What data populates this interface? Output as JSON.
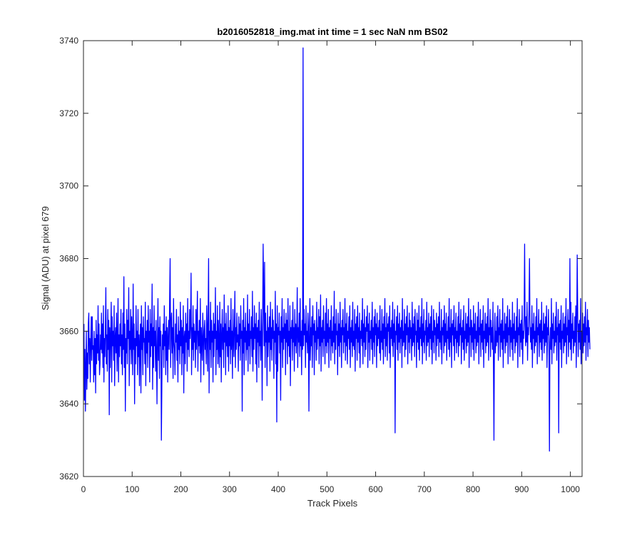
{
  "chart_data": {
    "type": "line",
    "title": "b2016052818_img.mat int time = 1 sec  NaN nm BS02",
    "xlabel": "Track Pixels",
    "ylabel": "Signal (ADU) at pixel 679",
    "xlim": [
      0,
      1024
    ],
    "ylim": [
      3620,
      3740
    ],
    "xticks": [
      0,
      100,
      200,
      300,
      400,
      500,
      600,
      700,
      800,
      900,
      1000
    ],
    "yticks": [
      3620,
      3640,
      3660,
      3680,
      3700,
      3720,
      3740
    ],
    "grid": false,
    "legend": "none",
    "series_color": "#0000ff",
    "series": [
      {
        "x_start": 1,
        "x_step": 1,
        "values": [
          3662,
          3641,
          3655,
          3638,
          3650,
          3660,
          3644,
          3654,
          3647,
          3662,
          3665,
          3651,
          3658,
          3646,
          3657,
          3664,
          3652,
          3664,
          3655,
          3656,
          3646,
          3660,
          3648,
          3658,
          3643,
          3663,
          3651,
          3659,
          3654,
          3667,
          3652,
          3662,
          3648,
          3651,
          3659,
          3655,
          3665,
          3654,
          3662,
          3650,
          3667,
          3646,
          3658,
          3653,
          3661,
          3672,
          3651,
          3659,
          3649,
          3666,
          3655,
          3663,
          3637,
          3661,
          3650,
          3659,
          3668,
          3646,
          3664,
          3656,
          3660,
          3652,
          3667,
          3645,
          3658,
          3661,
          3654,
          3665,
          3649,
          3657,
          3669,
          3646,
          3659,
          3653,
          3662,
          3656,
          3666,
          3651,
          3659,
          3648,
          3665,
          3655,
          3675,
          3650,
          3662,
          3638,
          3658,
          3654,
          3666,
          3651,
          3663,
          3658,
          3672,
          3645,
          3660,
          3655,
          3666,
          3651,
          3664,
          3658,
          3648,
          3673,
          3655,
          3662,
          3640,
          3658,
          3651,
          3667,
          3656,
          3660,
          3648,
          3666,
          3653,
          3659,
          3645,
          3657,
          3662,
          3643,
          3667,
          3655,
          3661,
          3648,
          3664,
          3657,
          3658,
          3651,
          3668,
          3645,
          3660,
          3654,
          3663,
          3650,
          3667,
          3657,
          3660,
          3646,
          3666,
          3653,
          3662,
          3656,
          3673,
          3644,
          3661,
          3650,
          3667,
          3656,
          3660,
          3649,
          3663,
          3655,
          3640,
          3658,
          3669,
          3652,
          3661,
          3647,
          3664,
          3656,
          3660,
          3630,
          3645,
          3659,
          3655,
          3662,
          3650,
          3667,
          3656,
          3660,
          3648,
          3664,
          3652,
          3661,
          3646,
          3658,
          3663,
          3655,
          3669,
          3653,
          3650,
          3662,
          3665,
          3654,
          3661,
          3647,
          3669,
          3657,
          3655,
          3648,
          3662,
          3657,
          3666,
          3652,
          3659,
          3646,
          3664,
          3655,
          3660,
          3651,
          3668,
          3656,
          3663,
          3648,
          3661,
          3654,
          3667,
          3643,
          3658,
          3660,
          3651,
          3665,
          3657,
          3662,
          3649,
          3669,
          3655,
          3660,
          3653,
          3666,
          3658,
          3663,
          3676,
          3648,
          3661,
          3655,
          3667,
          3652,
          3662,
          3657,
          3660,
          3650,
          3666,
          3655,
          3662,
          3671,
          3649,
          3660,
          3656,
          3663,
          3654,
          3669,
          3646,
          3661,
          3657,
          3652,
          3665,
          3659,
          3648,
          3660,
          3663,
          3655,
          3658,
          3651,
          3667,
          3661,
          3649,
          3664,
          3680,
          3643,
          3660,
          3655,
          3668,
          3650,
          3663,
          3657,
          3660,
          3646,
          3665,
          3653,
          3662,
          3658,
          3672,
          3648,
          3660,
          3655,
          3667,
          3651,
          3663,
          3657,
          3650,
          3668,
          3653,
          3662,
          3646,
          3659,
          3666,
          3655,
          3661,
          3650,
          3670,
          3657,
          3662,
          3648,
          3665,
          3656,
          3660,
          3653,
          3667,
          3649,
          3661,
          3656,
          3663,
          3651,
          3669,
          3655,
          3660,
          3647,
          3666,
          3658,
          3653,
          3662,
          3671,
          3650,
          3661,
          3655,
          3665,
          3657,
          3659,
          3649,
          3664,
          3656,
          3662,
          3652,
          3667,
          3658,
          3660,
          3638,
          3663,
          3654,
          3669,
          3648,
          3661,
          3657,
          3665,
          3652,
          3660,
          3655,
          3670,
          3649,
          3662,
          3656,
          3666,
          3651,
          3660,
          3658,
          3664,
          3653,
          3671,
          3649,
          3661,
          3655,
          3667,
          3658,
          3662,
          3651,
          3665,
          3646,
          3661,
          3657,
          3663,
          3650,
          3668,
          3656,
          3660,
          3652,
          3666,
          3659,
          3641,
          3663,
          3648,
          3669,
          3656,
          3662,
          3650,
          3665,
          3657,
          3660,
          3645,
          3667,
          3653,
          3661,
          3657,
          3664,
          3649,
          3668,
          3655,
          3661,
          3652,
          3666,
          3658,
          3663,
          3647,
          3660,
          3657,
          3671,
          3651,
          3662,
          3656,
          3667,
          3649,
          3661,
          3659,
          3665,
          3654,
          3660,
          3641,
          3664,
          3657,
          3669,
          3650,
          3661,
          3655,
          3666,
          3658,
          3662,
          3648,
          3665,
          3657,
          3663,
          3651,
          3669,
          3656,
          3660,
          3653,
          3667,
          3645,
          3661,
          3658,
          3663,
          3652,
          3668,
          3657,
          3661,
          3649,
          3666,
          3656,
          3662,
          3654,
          3660,
          3672,
          3650,
          3661,
          3657,
          3665,
          3653,
          3669,
          3656,
          3660,
          3648,
          3663,
          3661,
          3657,
          3652,
          3666,
          3659,
          3662,
          3650,
          3667,
          3657,
          3660,
          3654,
          3665,
          3661,
          3638,
          3658,
          3669,
          3652,
          3661,
          3656,
          3664,
          3650,
          3667,
          3659,
          3662,
          3648,
          3663,
          3657,
          3660,
          3652,
          3668,
          3655,
          3661,
          3658,
          3666,
          3651,
          3664,
          3656,
          3670,
          3649,
          3661,
          3657,
          3663,
          3653,
          3667,
          3658,
          3660,
          3651,
          3665,
          3656,
          3669,
          3654,
          3662,
          3657,
          3666,
          3650,
          3661,
          3658,
          3663,
          3652,
          3667,
          3656,
          3660,
          3654,
          3664,
          3657,
          3671,
          3651,
          3662,
          3655,
          3666,
          3659,
          3660,
          3648,
          3665,
          3656,
          3662,
          3653,
          3668,
          3657,
          3661,
          3650,
          3663,
          3659,
          3666,
          3654,
          3661,
          3657,
          3669,
          3652,
          3662,
          3656,
          3665,
          3651,
          3660,
          3658,
          3664,
          3655,
          3667,
          3650,
          3661,
          3657,
          3663,
          3653,
          3668,
          3656,
          3660,
          3655,
          3666,
          3649,
          3662,
          3658,
          3664,
          3652,
          3667,
          3657,
          3661,
          3654,
          3665,
          3650,
          3660,
          3658,
          3663,
          3656,
          3669,
          3651,
          3662,
          3657,
          3666,
          3653,
          3661,
          3655,
          3664,
          3660,
          3667,
          3650,
          3662,
          3657,
          3665,
          3652,
          3660,
          3658,
          3663,
          3655,
          3668,
          3651,
          3661,
          3657,
          3664,
          3653,
          3666,
          3659,
          3662,
          3650,
          3665,
          3656,
          3661,
          3658,
          3663,
          3654,
          3667,
          3652,
          3660,
          3657,
          3666,
          3655,
          3662,
          3651,
          3664,
          3658,
          3669,
          3653,
          3661,
          3656,
          3665,
          3652,
          3662,
          3660,
          3664,
          3654,
          3667,
          3650,
          3661,
          3658,
          3663,
          3656,
          3668,
          3653,
          3662,
          3657,
          3666,
          3651,
          3660,
          3659,
          3664,
          3655,
          3667,
          3652,
          3662,
          3657,
          3665,
          3654,
          3661,
          3658,
          3663,
          3650,
          3669,
          3656,
          3660,
          3657,
          3666,
          3653,
          3662,
          3655,
          3664,
          3659,
          3667,
          3651,
          3661,
          3657,
          3665,
          3654,
          3663,
          3658,
          3661,
          3652,
          3668,
          3656,
          3662,
          3657,
          3664,
          3653,
          3666,
          3659,
          3660,
          3650,
          3665,
          3657,
          3663,
          3655,
          3667,
          3652,
          3661,
          3658,
          3664,
          3656,
          3669,
          3651,
          3662,
          3657,
          3666,
          3654,
          3660,
          3659,
          3663,
          3652,
          3668,
          3656,
          3661,
          3657,
          3665,
          3653,
          3662,
          3658,
          3664,
          3655,
          3667,
          3651,
          3660,
          3657,
          3666,
          3654,
          3663,
          3659,
          3661,
          3652,
          3665,
          3656,
          3662,
          3658,
          3664,
          3653,
          3668,
          3657,
          3660,
          3655,
          3666,
          3651,
          3661,
          3659,
          3663,
          3654,
          3667,
          3656,
          3662,
          3657,
          3665,
          3652,
          3660,
          3658,
          3664,
          3655,
          3669,
          3653,
          3661,
          3657,
          3666,
          3650,
          3662,
          3659,
          3663,
          3656,
          3667,
          3652,
          3661,
          3658,
          3665,
          3654,
          3660,
          3657,
          3664,
          3653,
          3668,
          3656,
          3662,
          3659,
          3666,
          3651,
          3661,
          3657,
          3663,
          3655,
          3667,
          3652,
          3660,
          3658,
          3665,
          3654,
          3662,
          3656,
          3664,
          3657,
          3669,
          3650,
          3661,
          3659,
          3666,
          3653,
          3663,
          3657,
          3661,
          3655,
          3667,
          3652,
          3662,
          3658,
          3665,
          3654,
          3660,
          3656,
          3664,
          3657,
          3668,
          3651,
          3661,
          3659,
          3666,
          3653,
          3662,
          3657,
          3663,
          3655,
          3667,
          3650,
          3660,
          3658,
          3665,
          3654,
          3662,
          3656,
          3664,
          3657,
          3669,
          3652,
          3661,
          3659,
          3666,
          3653,
          3663,
          3657,
          3661,
          3655,
          3668,
          3651,
          3662,
          3658,
          3665,
          3654,
          3660,
          3656,
          3664,
          3657,
          3667,
          3652,
          3661,
          3659,
          3666,
          3653,
          3662,
          3657,
          3663,
          3655,
          3669,
          3650,
          3660,
          3658,
          3665,
          3654,
          3662,
          3656,
          3664,
          3657,
          3667,
          3651,
          3661,
          3659,
          3666,
          3653,
          3663,
          3657,
          3661,
          3655,
          3668,
          3652,
          3662,
          3658,
          3665,
          3654,
          3660,
          3656,
          3664,
          3657,
          3669,
          3650,
          3661,
          3659,
          3666,
          3653,
          3662,
          3657,
          3663,
          3655,
          3667,
          3651,
          3660,
          3658,
          3665,
          3654,
          3662,
          3656,
          3664,
          3657,
          3668,
          3652,
          3661,
          3659,
          3666,
          3653,
          3663,
          3657,
          3661,
          3655,
          3667,
          3650,
          3662,
          3658,
          3665,
          3654,
          3660,
          3656,
          3664,
          3657,
          3669,
          3651,
          3661,
          3659,
          3666,
          3653,
          3662,
          3657,
          3663,
          3655,
          3668,
          3652,
          3660,
          3658,
          3665,
          3654,
          3662,
          3656,
          3664,
          3657,
          3667,
          3650,
          3661,
          3659,
          3666,
          3653,
          3663,
          3657,
          3661,
          3655,
          3669,
          3651,
          3662,
          3658,
          3665,
          3654,
          3660,
          3656,
          3664,
          3657,
          3668,
          3652,
          3661,
          3659,
          3666,
          3653,
          3662,
          3657,
          3663,
          3655,
          3667,
          3650,
          3660,
          3658,
          3665,
          3654,
          3662,
          3656,
          3664,
          3657,
          3669,
          3651,
          3661,
          3659,
          3666,
          3653,
          3663,
          3657,
          3661,
          3655,
          3668,
          3652,
          3662,
          3658,
          3665,
          3654,
          3660,
          3656,
          3664,
          3657,
          3667,
          3650,
          3661,
          3659,
          3666,
          3653,
          3662,
          3657,
          3663,
          3655,
          3669,
          3651,
          3660,
          3658,
          3665,
          3654,
          3662,
          3656,
          3664,
          3657,
          3668,
          3652,
          3661,
          3659,
          3666,
          3653,
          3663,
          3657,
          3661,
          3655
        ]
      }
    ],
    "peaks": [
      {
        "x": 451,
        "y": 3738
      },
      {
        "x": 450,
        "y": 3655
      },
      {
        "x": 452,
        "y": 3656
      },
      {
        "x": 369,
        "y": 3684
      },
      {
        "x": 372,
        "y": 3679
      },
      {
        "x": 906,
        "y": 3684
      },
      {
        "x": 957,
        "y": 3627
      },
      {
        "x": 843,
        "y": 3630
      },
      {
        "x": 640,
        "y": 3632
      },
      {
        "x": 976,
        "y": 3632
      },
      {
        "x": 397,
        "y": 3635
      },
      {
        "x": 1014,
        "y": 3681
      },
      {
        "x": 999,
        "y": 3680
      },
      {
        "x": 178,
        "y": 3680
      },
      {
        "x": 916,
        "y": 3680
      }
    ]
  }
}
